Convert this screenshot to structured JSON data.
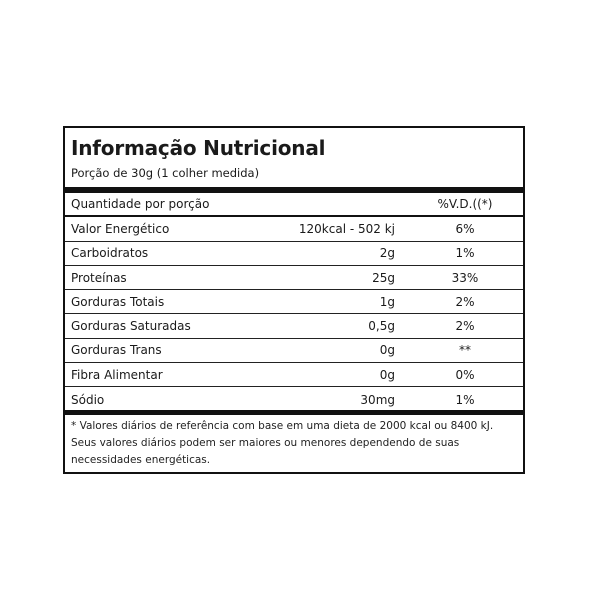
{
  "label": {
    "title": "Informação Nutricional",
    "portion": "Porção de 30g (1 colher medida)",
    "header": {
      "name": "Quantidade por porção",
      "dv": "%V.D.((*)"
    },
    "rows": [
      {
        "name": "Valor Energético",
        "amount": "120kcal - 502 kj",
        "dv": "6%"
      },
      {
        "name": "Carboidratos",
        "amount": "2g",
        "dv": "1%"
      },
      {
        "name": "Proteínas",
        "amount": "25g",
        "dv": "33%"
      },
      {
        "name": "Gorduras Totais",
        "amount": "1g",
        "dv": "2%"
      },
      {
        "name": "Gorduras Saturadas",
        "amount": "0,5g",
        "dv": "2%"
      },
      {
        "name": "Gorduras Trans",
        "amount": "0g",
        "dv": "**"
      },
      {
        "name": "Fibra Alimentar",
        "amount": "0g",
        "dv": "0%"
      },
      {
        "name": "Sódio",
        "amount": "30mg",
        "dv": "1%"
      }
    ],
    "footnote": "* Valores diários de referência com base em uma dieta de 2000 kcal ou 8400 kJ. Seus valores diários podem ser maiores ou menores dependendo de suas necessidades energéticas."
  }
}
